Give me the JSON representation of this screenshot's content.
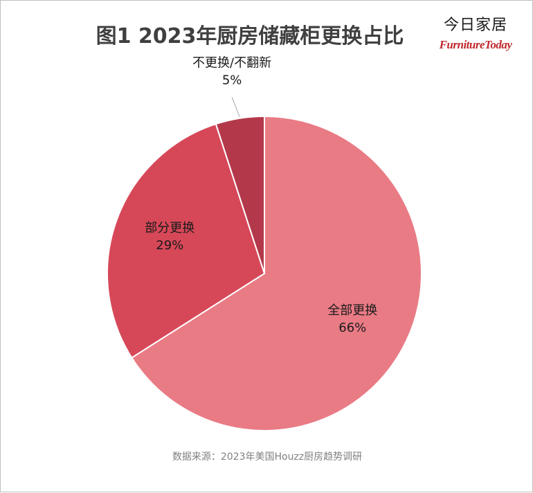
{
  "title": "图1 2023年厨房储藏柜更换占比",
  "brand": {
    "cn": "今日家居",
    "en": "FurnitureToday"
  },
  "source": "数据来源：2023年美国Houzz厨房趋势调研",
  "chart_data": {
    "type": "pie",
    "title": "图1 2023年厨房储藏柜更换占比",
    "start_angle_deg": 0,
    "direction": "clockwise",
    "slices": [
      {
        "label": "全部更换",
        "value": 66,
        "display": "66%",
        "color": "#e97b85"
      },
      {
        "label": "部分更换",
        "value": 29,
        "display": "29%",
        "color": "#d64858"
      },
      {
        "label": "不更换/不翻新",
        "value": 5,
        "display": "5%",
        "color": "#b3394a"
      }
    ]
  }
}
